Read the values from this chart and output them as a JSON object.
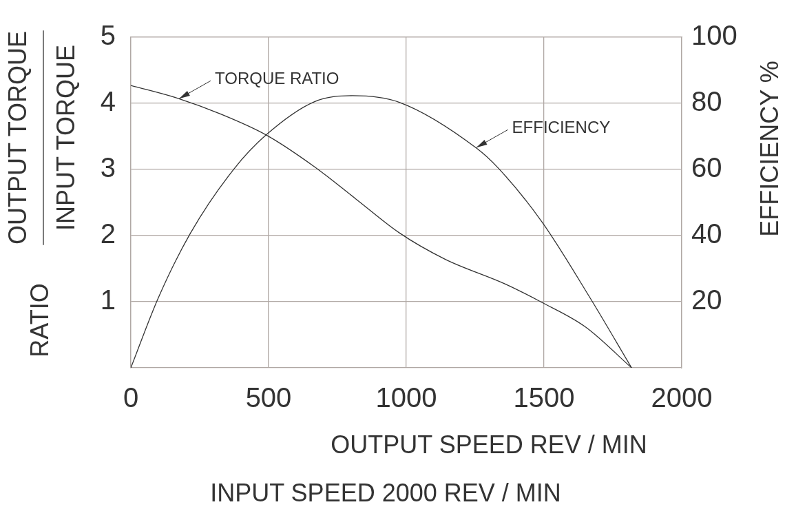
{
  "chart_data": {
    "type": "line",
    "xlabel": "OUTPUT SPEED REV / MIN",
    "ylabel": "RATIO OUTPUT TORQUE INPUT TORQUE",
    "y2label": "EFFICIENCY %",
    "annotations": [
      "INPUT SPEED 2000 REV / MIN",
      {
        "text": "TORQUE RATIO",
        "x": 175,
        "y": 4.07
      },
      {
        "text": "EFFICIENCY",
        "x": 1254,
        "y": 3.33
      }
    ],
    "xlim": [
      0,
      2000
    ],
    "xticks": [
      0,
      500,
      1000,
      1500,
      2000
    ],
    "ylim": [
      0,
      5
    ],
    "yticks": [
      1,
      2,
      3,
      4,
      5
    ],
    "y2lim": [
      0,
      100
    ],
    "y2ticks": [
      20,
      40,
      60,
      80,
      100
    ],
    "grid": true,
    "legend": false,
    "marker": "none",
    "line_style": "solid",
    "series": [
      {
        "color": "#333333",
        "x": [
          0,
          175,
          325,
          492,
          667,
          818,
          975,
          1142,
          1358,
          1492,
          1650,
          1818
        ],
        "values": [
          4.27,
          4.07,
          3.84,
          3.52,
          3.04,
          2.55,
          2.04,
          1.64,
          1.27,
          0.99,
          0.62,
          0
        ]
      },
      {
        "axis": "y2",
        "color": "#333333",
        "x": [
          0,
          100,
          217,
          375,
          492,
          667,
          804,
          975,
          1254,
          1333,
          1492,
          1667,
          1818
        ],
        "values": [
          0,
          21.2,
          40.8,
          60.2,
          70.5,
          80.5,
          82.3,
          80.3,
          66.5,
          60.5,
          44.2,
          21.2,
          0
        ]
      }
    ]
  }
}
